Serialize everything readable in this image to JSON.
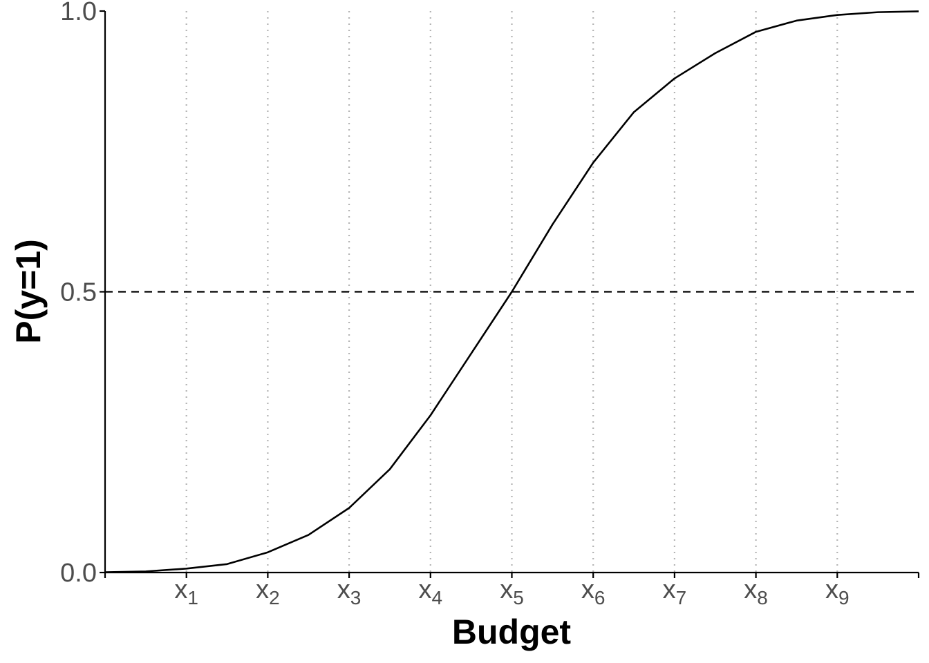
{
  "chart_data": {
    "type": "line",
    "title": "",
    "xlabel": "Budget",
    "ylabel": "P(y=1)",
    "xlim": [
      0,
      10
    ],
    "ylim": [
      0,
      1
    ],
    "x_ticks": [
      {
        "value": 1,
        "base": "x",
        "sub": "1"
      },
      {
        "value": 2,
        "base": "x",
        "sub": "2"
      },
      {
        "value": 3,
        "base": "x",
        "sub": "3"
      },
      {
        "value": 4,
        "base": "x",
        "sub": "4"
      },
      {
        "value": 5,
        "base": "x",
        "sub": "5"
      },
      {
        "value": 6,
        "base": "x",
        "sub": "6"
      },
      {
        "value": 7,
        "base": "x",
        "sub": "7"
      },
      {
        "value": 8,
        "base": "x",
        "sub": "8"
      },
      {
        "value": 9,
        "base": "x",
        "sub": "9"
      }
    ],
    "y_ticks": [
      {
        "value": 0,
        "label": "0.0"
      },
      {
        "value": 0.5,
        "label": "0.5"
      },
      {
        "value": 1,
        "label": "1.0"
      }
    ],
    "vertical_gridlines": "dotted at each x tick",
    "reference_line": {
      "y": 0.5,
      "style": "dashed"
    },
    "series": [
      {
        "x": [
          0,
          0.5,
          1,
          1.5,
          2,
          2.5,
          3,
          3.5,
          4,
          4.5,
          5,
          5.5,
          6,
          6.5,
          7,
          7.5,
          8,
          8.5,
          9,
          9.5,
          10
        ],
        "y": [
          0.0005,
          0.002,
          0.007,
          0.015,
          0.036,
          0.067,
          0.115,
          0.184,
          0.28,
          0.39,
          0.5,
          0.62,
          0.73,
          0.82,
          0.88,
          0.925,
          0.963,
          0.983,
          0.993,
          0.998,
          0.9995
        ]
      }
    ],
    "colors": {
      "line": "#000000",
      "grid": "#b3b3b3",
      "axis": "#000000",
      "tick_text": "#4d4d4d"
    }
  }
}
